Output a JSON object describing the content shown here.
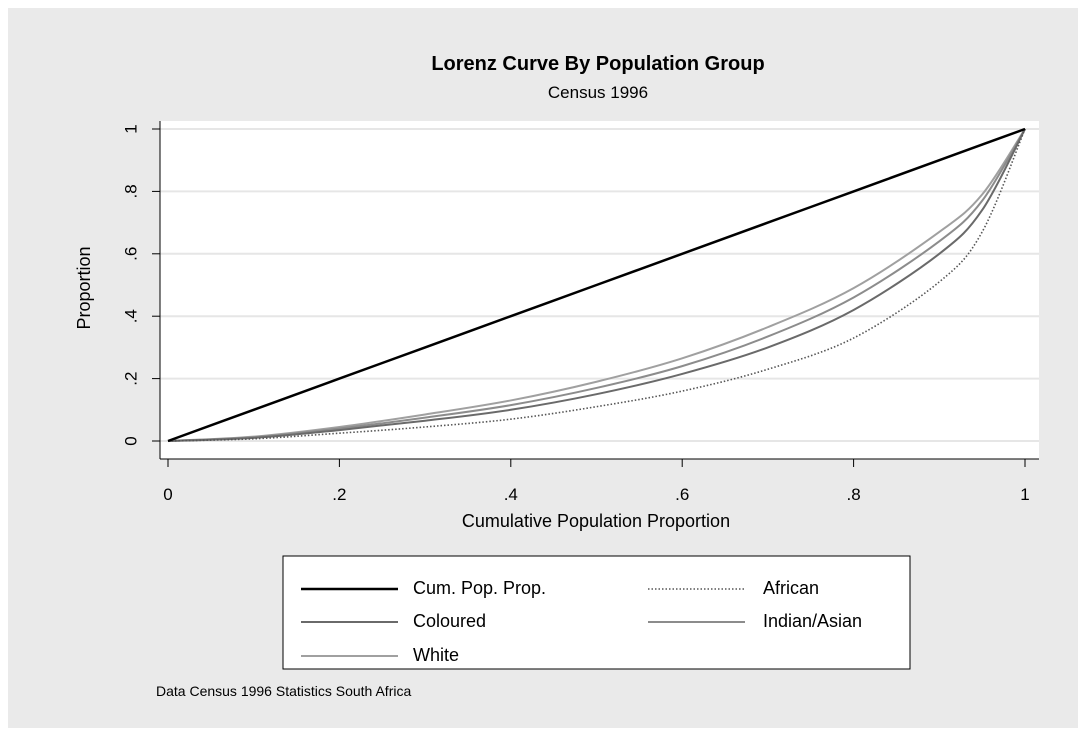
{
  "chart_data": {
    "type": "line",
    "title": "Lorenz Curve By Population Group",
    "subtitle": "Census 1996",
    "xlabel": "Cumulative Population Proportion",
    "ylabel": "Proportion",
    "xlim": [
      0,
      1
    ],
    "ylim": [
      0,
      1
    ],
    "x_ticks": [
      0,
      0.2,
      0.4,
      0.6,
      0.8,
      1
    ],
    "x_tick_labels": [
      "0",
      ".2",
      ".4",
      ".6",
      ".8",
      "1"
    ],
    "y_ticks": [
      0,
      0.2,
      0.4,
      0.6,
      0.8,
      1
    ],
    "y_tick_labels": [
      "0",
      ".2",
      ".4",
      ".6",
      ".8",
      "1"
    ],
    "grid": "horizontal",
    "legend_position": "bottom",
    "note": "Data Census 1996 Statistics South Africa",
    "x": [
      0,
      0.1,
      0.2,
      0.3,
      0.4,
      0.5,
      0.6,
      0.7,
      0.8,
      0.9,
      0.95,
      1
    ],
    "series": [
      {
        "name": "Cum. Pop. Prop.",
        "color": "#000000",
        "style": "solid",
        "values": [
          0,
          0.1,
          0.2,
          0.3,
          0.4,
          0.5,
          0.6,
          0.7,
          0.8,
          0.9,
          0.95,
          1
        ]
      },
      {
        "name": "African",
        "color": "#555555",
        "style": "dotted",
        "values": [
          0,
          0.007,
          0.025,
          0.045,
          0.07,
          0.11,
          0.16,
          0.23,
          0.33,
          0.51,
          0.67,
          1
        ]
      },
      {
        "name": "Coloured",
        "color": "#6a6a6a",
        "style": "solid",
        "values": [
          0,
          0.01,
          0.035,
          0.065,
          0.1,
          0.15,
          0.215,
          0.3,
          0.42,
          0.6,
          0.74,
          1
        ]
      },
      {
        "name": "Indian/Asian",
        "color": "#8c8c8c",
        "style": "solid",
        "values": [
          0,
          0.012,
          0.04,
          0.075,
          0.115,
          0.17,
          0.24,
          0.335,
          0.46,
          0.64,
          0.77,
          1
        ]
      },
      {
        "name": "White",
        "color": "#a0a0a0",
        "style": "solid",
        "values": [
          0,
          0.014,
          0.045,
          0.085,
          0.13,
          0.19,
          0.265,
          0.365,
          0.49,
          0.67,
          0.79,
          1
        ]
      }
    ]
  }
}
